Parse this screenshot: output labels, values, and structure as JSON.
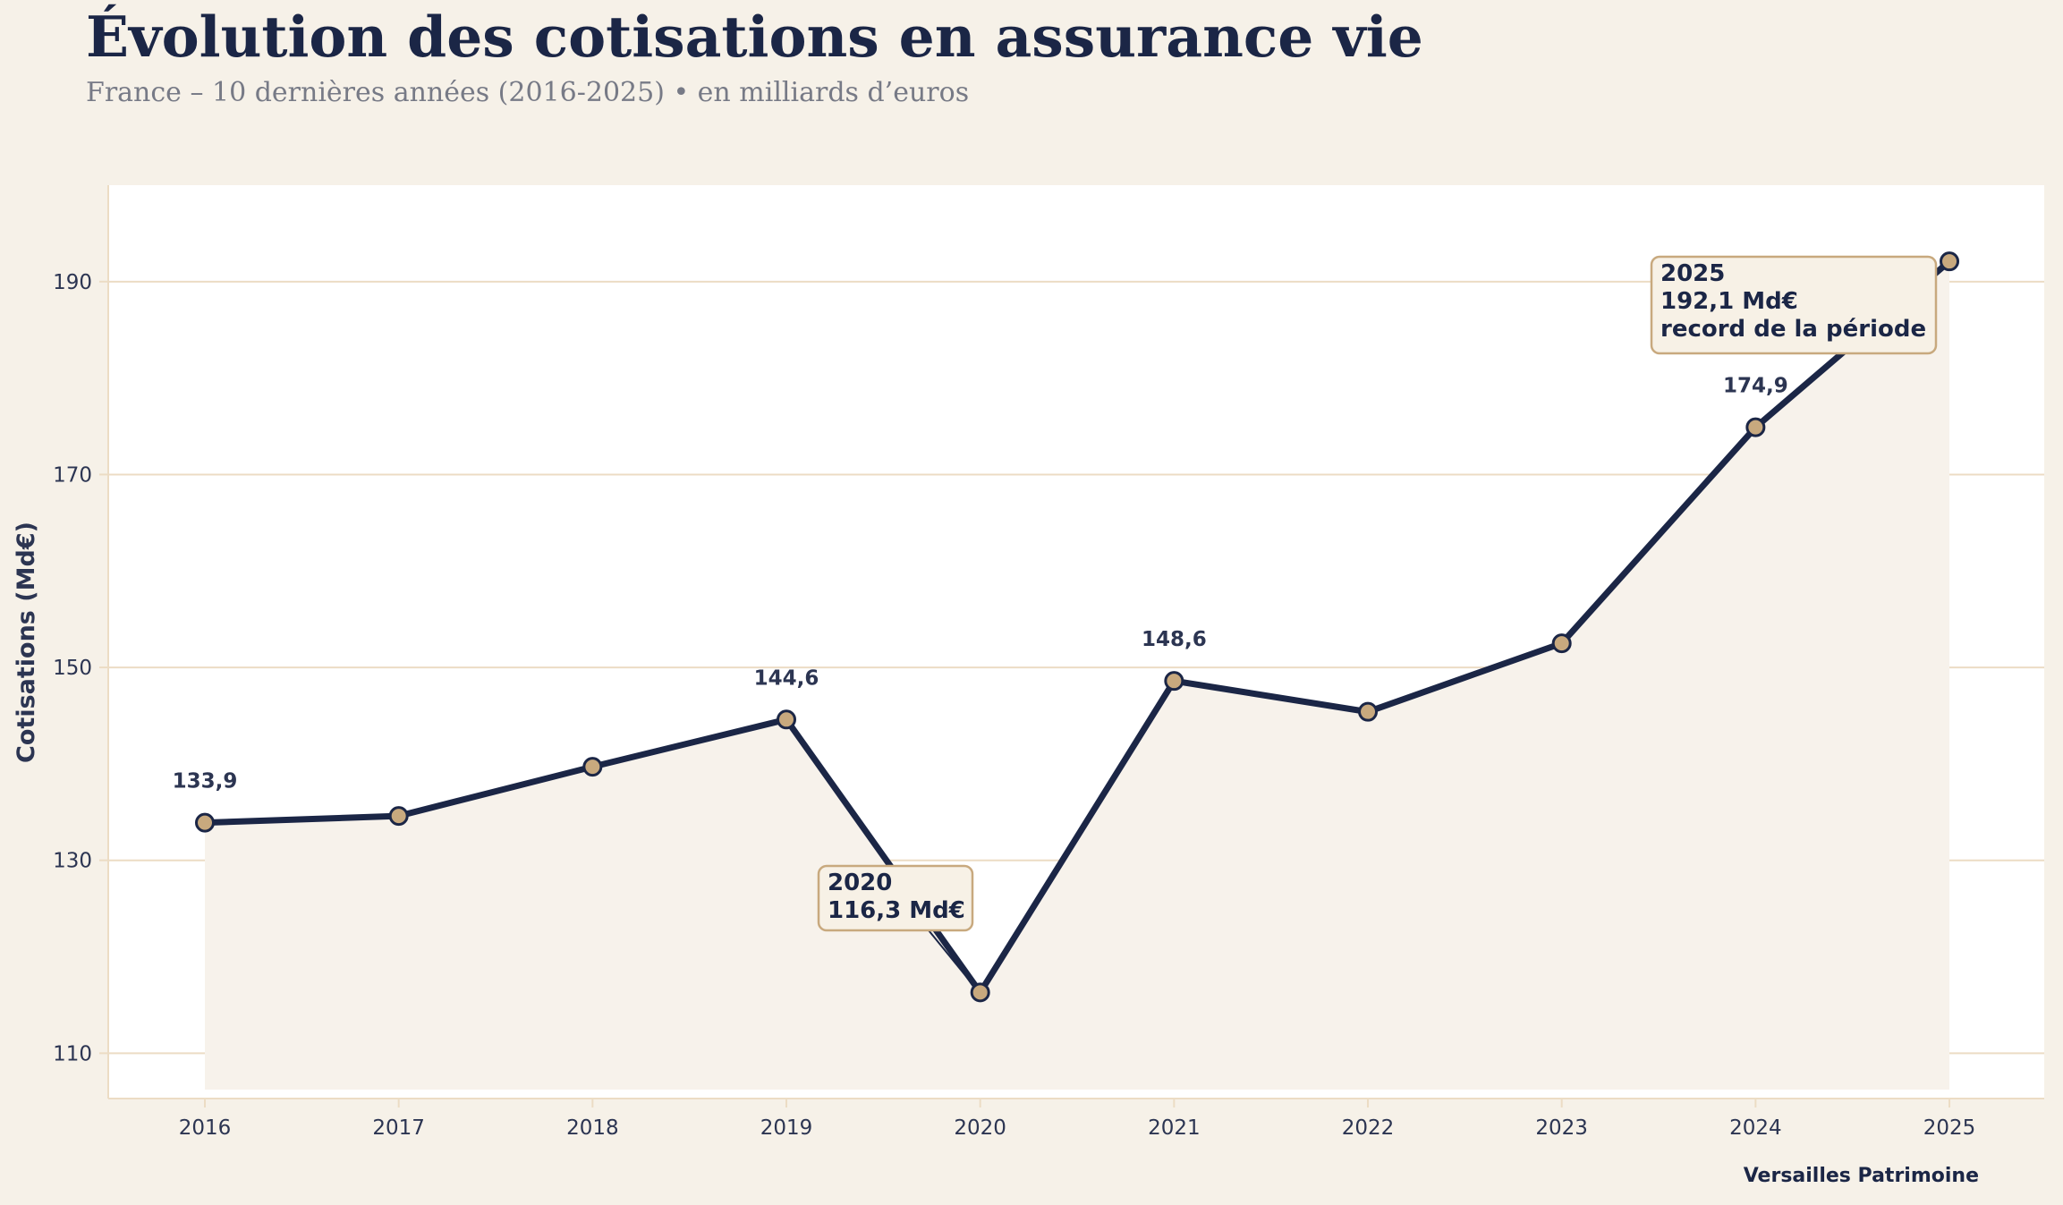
{
  "header": {
    "title": "Évolution des cotisations en assurance vie",
    "subtitle": "France – 10 dernières années (2016-2025) • en milliards d’euros"
  },
  "footer": {
    "credit": "Versailles Patrimoine"
  },
  "colors": {
    "background": "#f6f1e8",
    "plot_background": "#ffffff",
    "line": "#1b2646",
    "marker_fill": "#c8a97e",
    "grid": "#ecdcc4",
    "area_fill": "#f7f2eb"
  },
  "chart_data": {
    "type": "line",
    "title": "Évolution des cotisations en assurance vie",
    "xlabel": "",
    "ylabel": "Cotisations (Md€)",
    "x": [
      2016,
      2017,
      2018,
      2019,
      2020,
      2021,
      2022,
      2023,
      2024,
      2025
    ],
    "x_tick_labels": [
      "2016",
      "2017",
      "2018",
      "2019",
      "2020",
      "2021",
      "2022",
      "2023",
      "2024",
      "2025"
    ],
    "y_ticks": [
      110,
      130,
      150,
      170,
      190
    ],
    "y_tick_labels": [
      "110",
      "130",
      "150",
      "170",
      "190"
    ],
    "ylim": [
      105.3,
      200
    ],
    "xlim": [
      2015.5,
      2025.5
    ],
    "grid": "horizontal",
    "series": [
      {
        "values": [
          133.9,
          134.6,
          139.7,
          144.6,
          116.3,
          148.6,
          145.4,
          152.5,
          174.9,
          192.1
        ]
      }
    ],
    "data_labels": [
      {
        "x": 2016,
        "text": "133,9"
      },
      {
        "x": 2019,
        "text": "144,6"
      },
      {
        "x": 2021,
        "text": "148,6"
      },
      {
        "x": 2024,
        "text": "174,9"
      }
    ],
    "annotations": [
      {
        "x": 2020,
        "lines": [
          "2020",
          "116,3 Md€"
        ]
      },
      {
        "x": 2025,
        "lines": [
          "2025",
          "192,1 Md€",
          "record de la période"
        ]
      }
    ]
  }
}
